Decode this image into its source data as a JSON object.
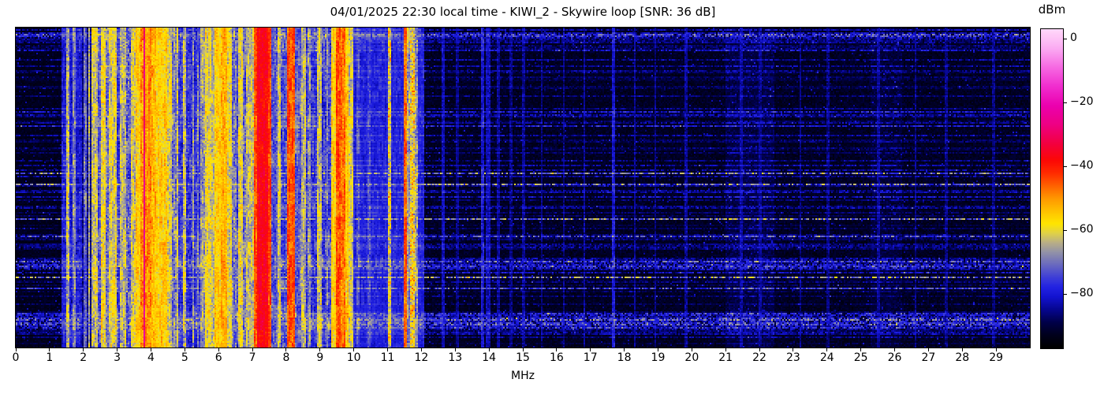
{
  "chart_data": {
    "type": "heatmap",
    "title": "04/01/2025 22:30 local time - KIWI_2 - Skywire loop [SNR: 36 dB]",
    "xlabel": "MHz",
    "ylabel": "",
    "y_axis_note": "vertical axis is time; no ticks or labels shown",
    "x_range_mhz": [
      0,
      30
    ],
    "x_ticks": [
      0,
      1,
      2,
      3,
      4,
      5,
      6,
      7,
      8,
      9,
      10,
      11,
      12,
      13,
      14,
      15,
      16,
      17,
      18,
      19,
      20,
      21,
      22,
      23,
      24,
      25,
      26,
      27,
      28,
      29
    ],
    "grid": false,
    "legend": "none",
    "colorbar": {
      "label": "dBm",
      "position": "right",
      "ticks": [
        0,
        -20,
        -40,
        -60,
        -80
      ],
      "vmin": -97,
      "vmax": 3,
      "colormap_stops": [
        [
          -97,
          "#000000"
        ],
        [
          -93,
          "#00001c"
        ],
        [
          -89,
          "#000048"
        ],
        [
          -85,
          "#06068e"
        ],
        [
          -81,
          "#1313cf"
        ],
        [
          -78,
          "#2222e2"
        ],
        [
          -75,
          "#3d3dd8"
        ],
        [
          -71,
          "#6868c0"
        ],
        [
          -67,
          "#9292a8"
        ],
        [
          -64,
          "#b8ae88"
        ],
        [
          -61,
          "#e0d148"
        ],
        [
          -58,
          "#ffe600"
        ],
        [
          -54,
          "#ffc100"
        ],
        [
          -50,
          "#ff9700"
        ],
        [
          -46,
          "#ff6000"
        ],
        [
          -42,
          "#ff2a00"
        ],
        [
          -38,
          "#fc0806"
        ],
        [
          -33,
          "#f3003e"
        ],
        [
          -27,
          "#ee0082"
        ],
        [
          -21,
          "#eb00ae"
        ],
        [
          -15,
          "#f02cce"
        ],
        [
          -9,
          "#f668e2"
        ],
        [
          -3,
          "#fbaaf2"
        ],
        [
          3,
          "#ffd9fa"
        ]
      ]
    },
    "bands_format": [
      "start_mhz",
      "end_mhz",
      "mean_level_dbm",
      "variation_db"
    ],
    "bands": [
      [
        0.0,
        30.0,
        -93,
        3.0
      ],
      [
        12.06,
        30.0,
        -92.5,
        3.2
      ],
      [
        0.0,
        1.38,
        -93,
        2.5
      ],
      [
        1.38,
        1.92,
        -80,
        4
      ],
      [
        1.52,
        1.56,
        -63,
        8
      ],
      [
        1.7,
        1.73,
        -69,
        6
      ],
      [
        1.92,
        2.28,
        -87,
        4
      ],
      [
        2.05,
        2.09,
        -72,
        6
      ],
      [
        2.16,
        2.19,
        -66,
        7
      ],
      [
        2.28,
        2.42,
        -63,
        7
      ],
      [
        2.42,
        2.52,
        -74,
        6
      ],
      [
        2.52,
        2.64,
        -59,
        6
      ],
      [
        2.64,
        2.78,
        -70,
        7
      ],
      [
        2.78,
        2.96,
        -61,
        6
      ],
      [
        2.96,
        3.12,
        -76,
        6
      ],
      [
        3.12,
        3.22,
        -64,
        6
      ],
      [
        3.22,
        3.42,
        -73,
        8
      ],
      [
        3.42,
        3.56,
        -62,
        6
      ],
      [
        3.56,
        3.72,
        -56,
        5
      ],
      [
        3.72,
        3.79,
        -50,
        5
      ],
      [
        3.795,
        3.825,
        -28,
        4
      ],
      [
        3.825,
        4.0,
        -50,
        5
      ],
      [
        4.0,
        4.15,
        -53,
        5
      ],
      [
        4.15,
        4.28,
        -57,
        5
      ],
      [
        4.28,
        4.44,
        -56,
        5
      ],
      [
        4.44,
        4.6,
        -61,
        6
      ],
      [
        4.6,
        4.72,
        -70,
        7
      ],
      [
        4.72,
        5.02,
        -77,
        5
      ],
      [
        4.76,
        4.8,
        -62,
        7
      ],
      [
        4.98,
        5.02,
        -63,
        7
      ],
      [
        5.02,
        5.5,
        -78,
        5
      ],
      [
        5.24,
        5.27,
        -68,
        7
      ],
      [
        5.37,
        5.4,
        -70,
        6
      ],
      [
        5.5,
        5.62,
        -67,
        6
      ],
      [
        5.62,
        5.78,
        -60,
        6
      ],
      [
        5.78,
        5.92,
        -64,
        6
      ],
      [
        5.92,
        6.08,
        -56,
        5
      ],
      [
        6.08,
        6.24,
        -53,
        5
      ],
      [
        6.24,
        6.38,
        -60,
        6
      ],
      [
        6.38,
        6.52,
        -70,
        7
      ],
      [
        6.52,
        6.6,
        -75,
        6
      ],
      [
        6.6,
        6.68,
        -60,
        6
      ],
      [
        6.68,
        6.85,
        -71,
        7
      ],
      [
        6.85,
        7.02,
        -63,
        6
      ],
      [
        7.02,
        7.08,
        -73,
        6
      ],
      [
        7.08,
        7.18,
        -45,
        5
      ],
      [
        7.18,
        7.44,
        -37,
        4
      ],
      [
        7.44,
        7.52,
        -44,
        5
      ],
      [
        7.52,
        7.78,
        -73,
        6
      ],
      [
        7.79,
        7.83,
        -62,
        6
      ],
      [
        7.83,
        8.03,
        -74,
        6
      ],
      [
        8.03,
        8.25,
        -45,
        5
      ],
      [
        8.25,
        8.48,
        -72,
        6
      ],
      [
        8.48,
        8.54,
        -64,
        6
      ],
      [
        8.54,
        8.95,
        -77,
        6
      ],
      [
        8.66,
        8.69,
        -68,
        6
      ],
      [
        8.95,
        9.03,
        -63,
        6
      ],
      [
        9.03,
        9.35,
        -76,
        6
      ],
      [
        9.2,
        9.23,
        -70,
        6
      ],
      [
        9.35,
        9.5,
        -57,
        5
      ],
      [
        9.5,
        9.57,
        -45,
        5
      ],
      [
        9.57,
        9.65,
        -55,
        5
      ],
      [
        9.65,
        9.72,
        -48,
        5
      ],
      [
        9.72,
        9.8,
        -56,
        5
      ],
      [
        9.8,
        9.95,
        -62,
        6
      ],
      [
        9.95,
        12.06,
        -79,
        3
      ],
      [
        10.12,
        10.16,
        -74,
        4
      ],
      [
        10.43,
        10.46,
        -75,
        4
      ],
      [
        11.02,
        11.08,
        -60,
        12
      ],
      [
        11.48,
        11.57,
        -46,
        5
      ],
      [
        11.6,
        11.64,
        -67,
        6
      ],
      [
        11.71,
        11.77,
        -58,
        12
      ],
      [
        11.84,
        11.88,
        -67,
        7
      ],
      [
        12.63,
        12.67,
        -83,
        4
      ],
      [
        13.05,
        13.08,
        -86,
        4
      ],
      [
        13.78,
        13.83,
        -81,
        4
      ],
      [
        13.95,
        14.0,
        -83,
        4
      ],
      [
        14.25,
        14.28,
        -85,
        4
      ],
      [
        14.64,
        14.67,
        -86,
        4
      ],
      [
        15.0,
        15.04,
        -85,
        4
      ],
      [
        15.55,
        15.58,
        -86,
        4
      ],
      [
        16.2,
        16.23,
        -86,
        4
      ],
      [
        16.8,
        16.83,
        -85,
        4
      ],
      [
        17.66,
        17.71,
        -81,
        4
      ],
      [
        18.3,
        18.33,
        -85,
        4
      ],
      [
        18.9,
        18.93,
        -86,
        4
      ],
      [
        19.8,
        19.84,
        -85,
        4
      ],
      [
        21.0,
        22.4,
        -89.5,
        3.5
      ],
      [
        21.45,
        21.49,
        -84,
        4
      ],
      [
        22.0,
        22.04,
        -85,
        4
      ],
      [
        23.2,
        23.23,
        -86,
        4
      ],
      [
        24.0,
        24.03,
        -86,
        4
      ],
      [
        25.3,
        26.2,
        -90.5,
        3.5
      ],
      [
        25.5,
        25.54,
        -85,
        4
      ],
      [
        26.6,
        26.63,
        -86,
        4
      ],
      [
        27.5,
        27.53,
        -86,
        4
      ],
      [
        28.9,
        28.93,
        -86,
        4
      ]
    ],
    "render_hints": {
      "seed": 20250401,
      "freq_cols": 643,
      "time_rows": 203,
      "time_noise_bursts": {
        "description": "horizontal blue/white streak rows (wideband impulsive noise over time), most visible above ~10 MHz and in the dark 0-1.4 MHz region",
        "row_fraction_weak": 0.33,
        "row_fraction_strong": 0.07,
        "strength_db_weak": [
          3,
          10
        ],
        "strength_db_strong": [
          10,
          26
        ],
        "strong_cluster_rows": [
          [
            3,
            6
          ],
          [
            146,
            153
          ],
          [
            181,
            190
          ]
        ]
      }
    }
  }
}
